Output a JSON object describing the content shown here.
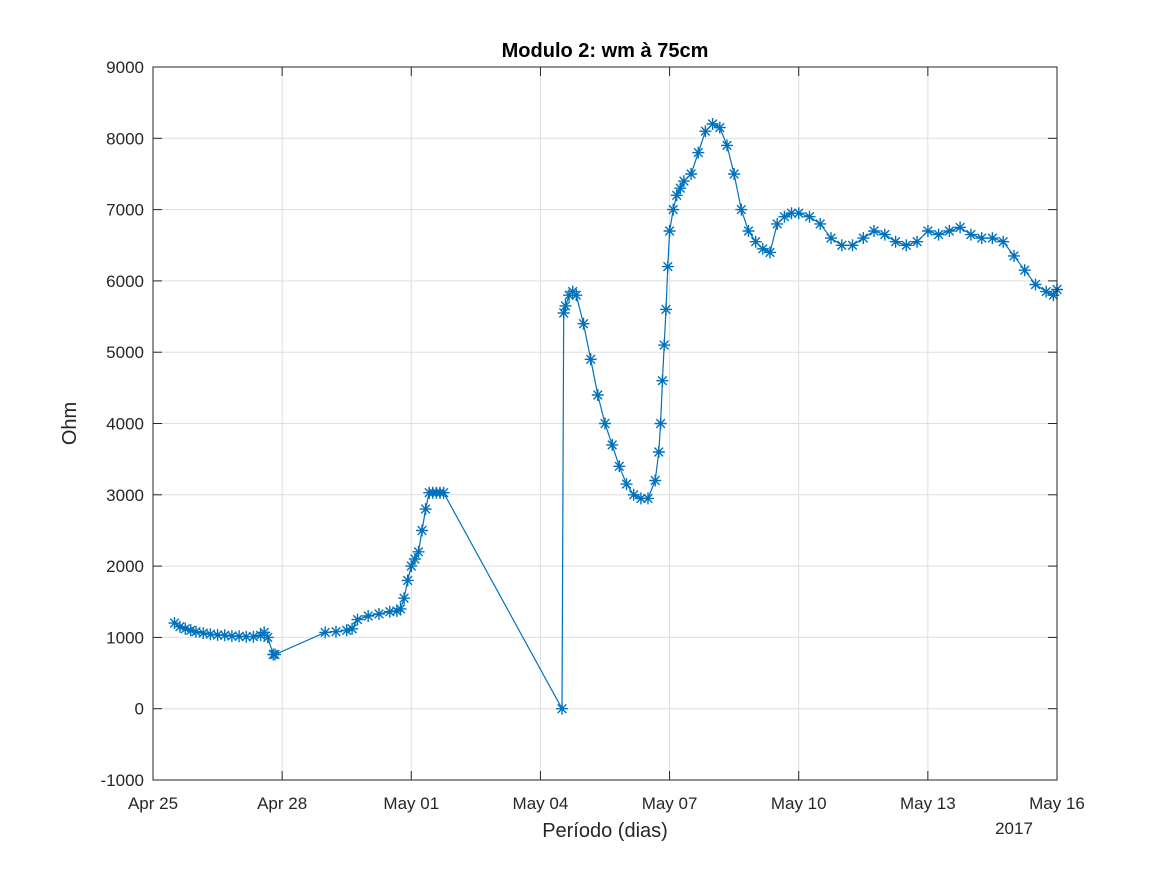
{
  "chart_data": {
    "type": "line",
    "title": "Modulo 2: wm à 75cm",
    "xlabel": "Período (dias)",
    "ylabel": "Ohm",
    "year_label": "2017",
    "x_type": "date",
    "xlim": [
      "2017-04-25",
      "2017-05-16"
    ],
    "ylim": [
      -1000,
      9000
    ],
    "grid": true,
    "marker": "asterisk",
    "line_color": "#0072bd",
    "xticks": [
      {
        "date": "2017-04-25",
        "label": "Apr 25"
      },
      {
        "date": "2017-04-28",
        "label": "Apr 28"
      },
      {
        "date": "2017-05-01",
        "label": "May 01"
      },
      {
        "date": "2017-05-04",
        "label": "May 04"
      },
      {
        "date": "2017-05-07",
        "label": "May 07"
      },
      {
        "date": "2017-05-10",
        "label": "May 10"
      },
      {
        "date": "2017-05-13",
        "label": "May 13"
      },
      {
        "date": "2017-05-16",
        "label": "May 16"
      }
    ],
    "yticks": [
      -1000,
      0,
      1000,
      2000,
      3000,
      4000,
      5000,
      6000,
      7000,
      8000,
      9000
    ],
    "series": [
      {
        "x": [
          "2017-04-25 12:00",
          "2017-04-25 15:00",
          "2017-04-25 18:00",
          "2017-04-25 21:00",
          "2017-04-26 00:00",
          "2017-04-26 04:00",
          "2017-04-26 08:00",
          "2017-04-26 12:00",
          "2017-04-26 16:00",
          "2017-04-26 20:00",
          "2017-04-27 00:00",
          "2017-04-27 04:00",
          "2017-04-27 08:00",
          "2017-04-27 12:00",
          "2017-04-27 14:00",
          "2017-04-27 16:00",
          "2017-04-27 19:00",
          "2017-04-27 20:00",
          "2017-04-29 00:00",
          "2017-04-29 06:00",
          "2017-04-29 12:00",
          "2017-04-29 15:00",
          "2017-04-29 18:00",
          "2017-04-30 00:00",
          "2017-04-30 06:00",
          "2017-04-30 12:00",
          "2017-04-30 16:00",
          "2017-04-30 18:00",
          "2017-04-30 20:00",
          "2017-04-30 22:00",
          "2017-05-01 00:00",
          "2017-05-01 02:00",
          "2017-05-01 04:00",
          "2017-05-01 06:00",
          "2017-05-01 08:00",
          "2017-05-01 10:00",
          "2017-05-01 12:00",
          "2017-05-01 14:00",
          "2017-05-01 16:00",
          "2017-05-01 18:00",
          "2017-05-04 12:00",
          "2017-05-04 13:00",
          "2017-05-04 14:00",
          "2017-05-04 16:00",
          "2017-05-04 18:00",
          "2017-05-04 20:00",
          "2017-05-05 00:00",
          "2017-05-05 04:00",
          "2017-05-05 08:00",
          "2017-05-05 12:00",
          "2017-05-05 16:00",
          "2017-05-05 20:00",
          "2017-05-06 00:00",
          "2017-05-06 04:00",
          "2017-05-06 08:00",
          "2017-05-06 12:00",
          "2017-05-06 16:00",
          "2017-05-06 18:00",
          "2017-05-06 19:00",
          "2017-05-06 20:00",
          "2017-05-06 21:00",
          "2017-05-06 22:00",
          "2017-05-06 23:00",
          "2017-05-07 00:00",
          "2017-05-07 02:00",
          "2017-05-07 04:00",
          "2017-05-07 06:00",
          "2017-05-07 08:00",
          "2017-05-07 12:00",
          "2017-05-07 16:00",
          "2017-05-07 20:00",
          "2017-05-08 00:00",
          "2017-05-08 04:00",
          "2017-05-08 08:00",
          "2017-05-08 12:00",
          "2017-05-08 16:00",
          "2017-05-08 20:00",
          "2017-05-09 00:00",
          "2017-05-09 04:00",
          "2017-05-09 08:00",
          "2017-05-09 12:00",
          "2017-05-09 16:00",
          "2017-05-09 20:00",
          "2017-05-10 00:00",
          "2017-05-10 06:00",
          "2017-05-10 12:00",
          "2017-05-10 18:00",
          "2017-05-11 00:00",
          "2017-05-11 06:00",
          "2017-05-11 12:00",
          "2017-05-11 18:00",
          "2017-05-12 00:00",
          "2017-05-12 06:00",
          "2017-05-12 12:00",
          "2017-05-12 18:00",
          "2017-05-13 00:00",
          "2017-05-13 06:00",
          "2017-05-13 12:00",
          "2017-05-13 18:00",
          "2017-05-14 00:00",
          "2017-05-14 06:00",
          "2017-05-14 12:00",
          "2017-05-14 18:00",
          "2017-05-15 00:00",
          "2017-05-15 06:00",
          "2017-05-15 12:00",
          "2017-05-15 18:00",
          "2017-05-15 22:00",
          "2017-05-16 00:00"
        ],
        "values": [
          1200,
          1150,
          1120,
          1100,
          1080,
          1060,
          1045,
          1035,
          1030,
          1020,
          1015,
          1010,
          1010,
          1030,
          1070,
          1000,
          760,
          760,
          1070,
          1080,
          1100,
          1120,
          1250,
          1300,
          1330,
          1360,
          1370,
          1400,
          1550,
          1800,
          2000,
          2100,
          2200,
          2500,
          2800,
          3030,
          3030,
          3030,
          3030,
          3030,
          0,
          5550,
          5650,
          5800,
          5850,
          5800,
          5400,
          4900,
          4400,
          4000,
          3700,
          3400,
          3150,
          3000,
          2950,
          2950,
          3200,
          3600,
          4000,
          4600,
          5100,
          5600,
          6200,
          6700,
          7000,
          7200,
          7300,
          7400,
          7500,
          7800,
          8100,
          8200,
          8150,
          7900,
          7500,
          7000,
          6700,
          6550,
          6450,
          6400,
          6800,
          6900,
          6950,
          6950,
          6900,
          6800,
          6600,
          6500,
          6500,
          6600,
          6700,
          6650,
          6550,
          6500,
          6550,
          6700,
          6650,
          6700,
          6750,
          6650,
          6600,
          6600,
          6550,
          6350,
          6150,
          5950,
          5850,
          5800,
          5880
        ]
      }
    ]
  }
}
